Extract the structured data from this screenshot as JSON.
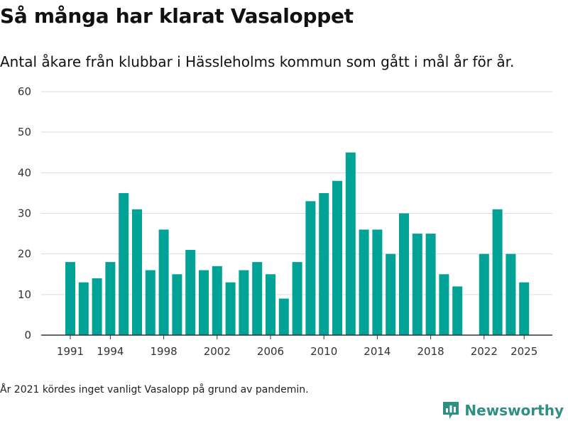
{
  "header": {
    "title": "Så många har klarat Vasaloppet",
    "subtitle": "Antal åkare från klubbar i Hässleholms kommun som gått i mål år för år."
  },
  "footer": {
    "note": "År 2021 kördes inget vanligt Vasalopp på grund av pandemin.",
    "brand": "Newsworthy",
    "brand_icon": "bar-chart-logo-icon",
    "brand_color": "#2f8f83"
  },
  "chart_data": {
    "type": "bar",
    "title": "Så många har klarat Vasaloppet",
    "subtitle": "Antal åkare från klubbar i Hässleholms kommun som gått i mål år för år.",
    "xlabel": "",
    "ylabel": "",
    "x": [
      1991,
      1992,
      1993,
      1994,
      1995,
      1996,
      1997,
      1998,
      1999,
      2000,
      2001,
      2002,
      2003,
      2004,
      2005,
      2006,
      2007,
      2008,
      2009,
      2010,
      2011,
      2012,
      2013,
      2014,
      2015,
      2016,
      2017,
      2018,
      2019,
      2020,
      2021,
      2022,
      2023,
      2024,
      2025
    ],
    "values": [
      18,
      13,
      14,
      18,
      35,
      31,
      16,
      26,
      15,
      21,
      16,
      17,
      13,
      16,
      18,
      15,
      9,
      18,
      33,
      35,
      38,
      45,
      26,
      26,
      20,
      30,
      25,
      25,
      15,
      12,
      null,
      20,
      31,
      20,
      13
    ],
    "x_ticks": [
      1991,
      1994,
      1998,
      2002,
      2006,
      2010,
      2014,
      2018,
      2022,
      2025
    ],
    "ylim": [
      0,
      60
    ],
    "y_ticks": [
      0,
      10,
      20,
      30,
      40,
      50,
      60
    ],
    "grid": true,
    "bar_color": "#00a396"
  }
}
